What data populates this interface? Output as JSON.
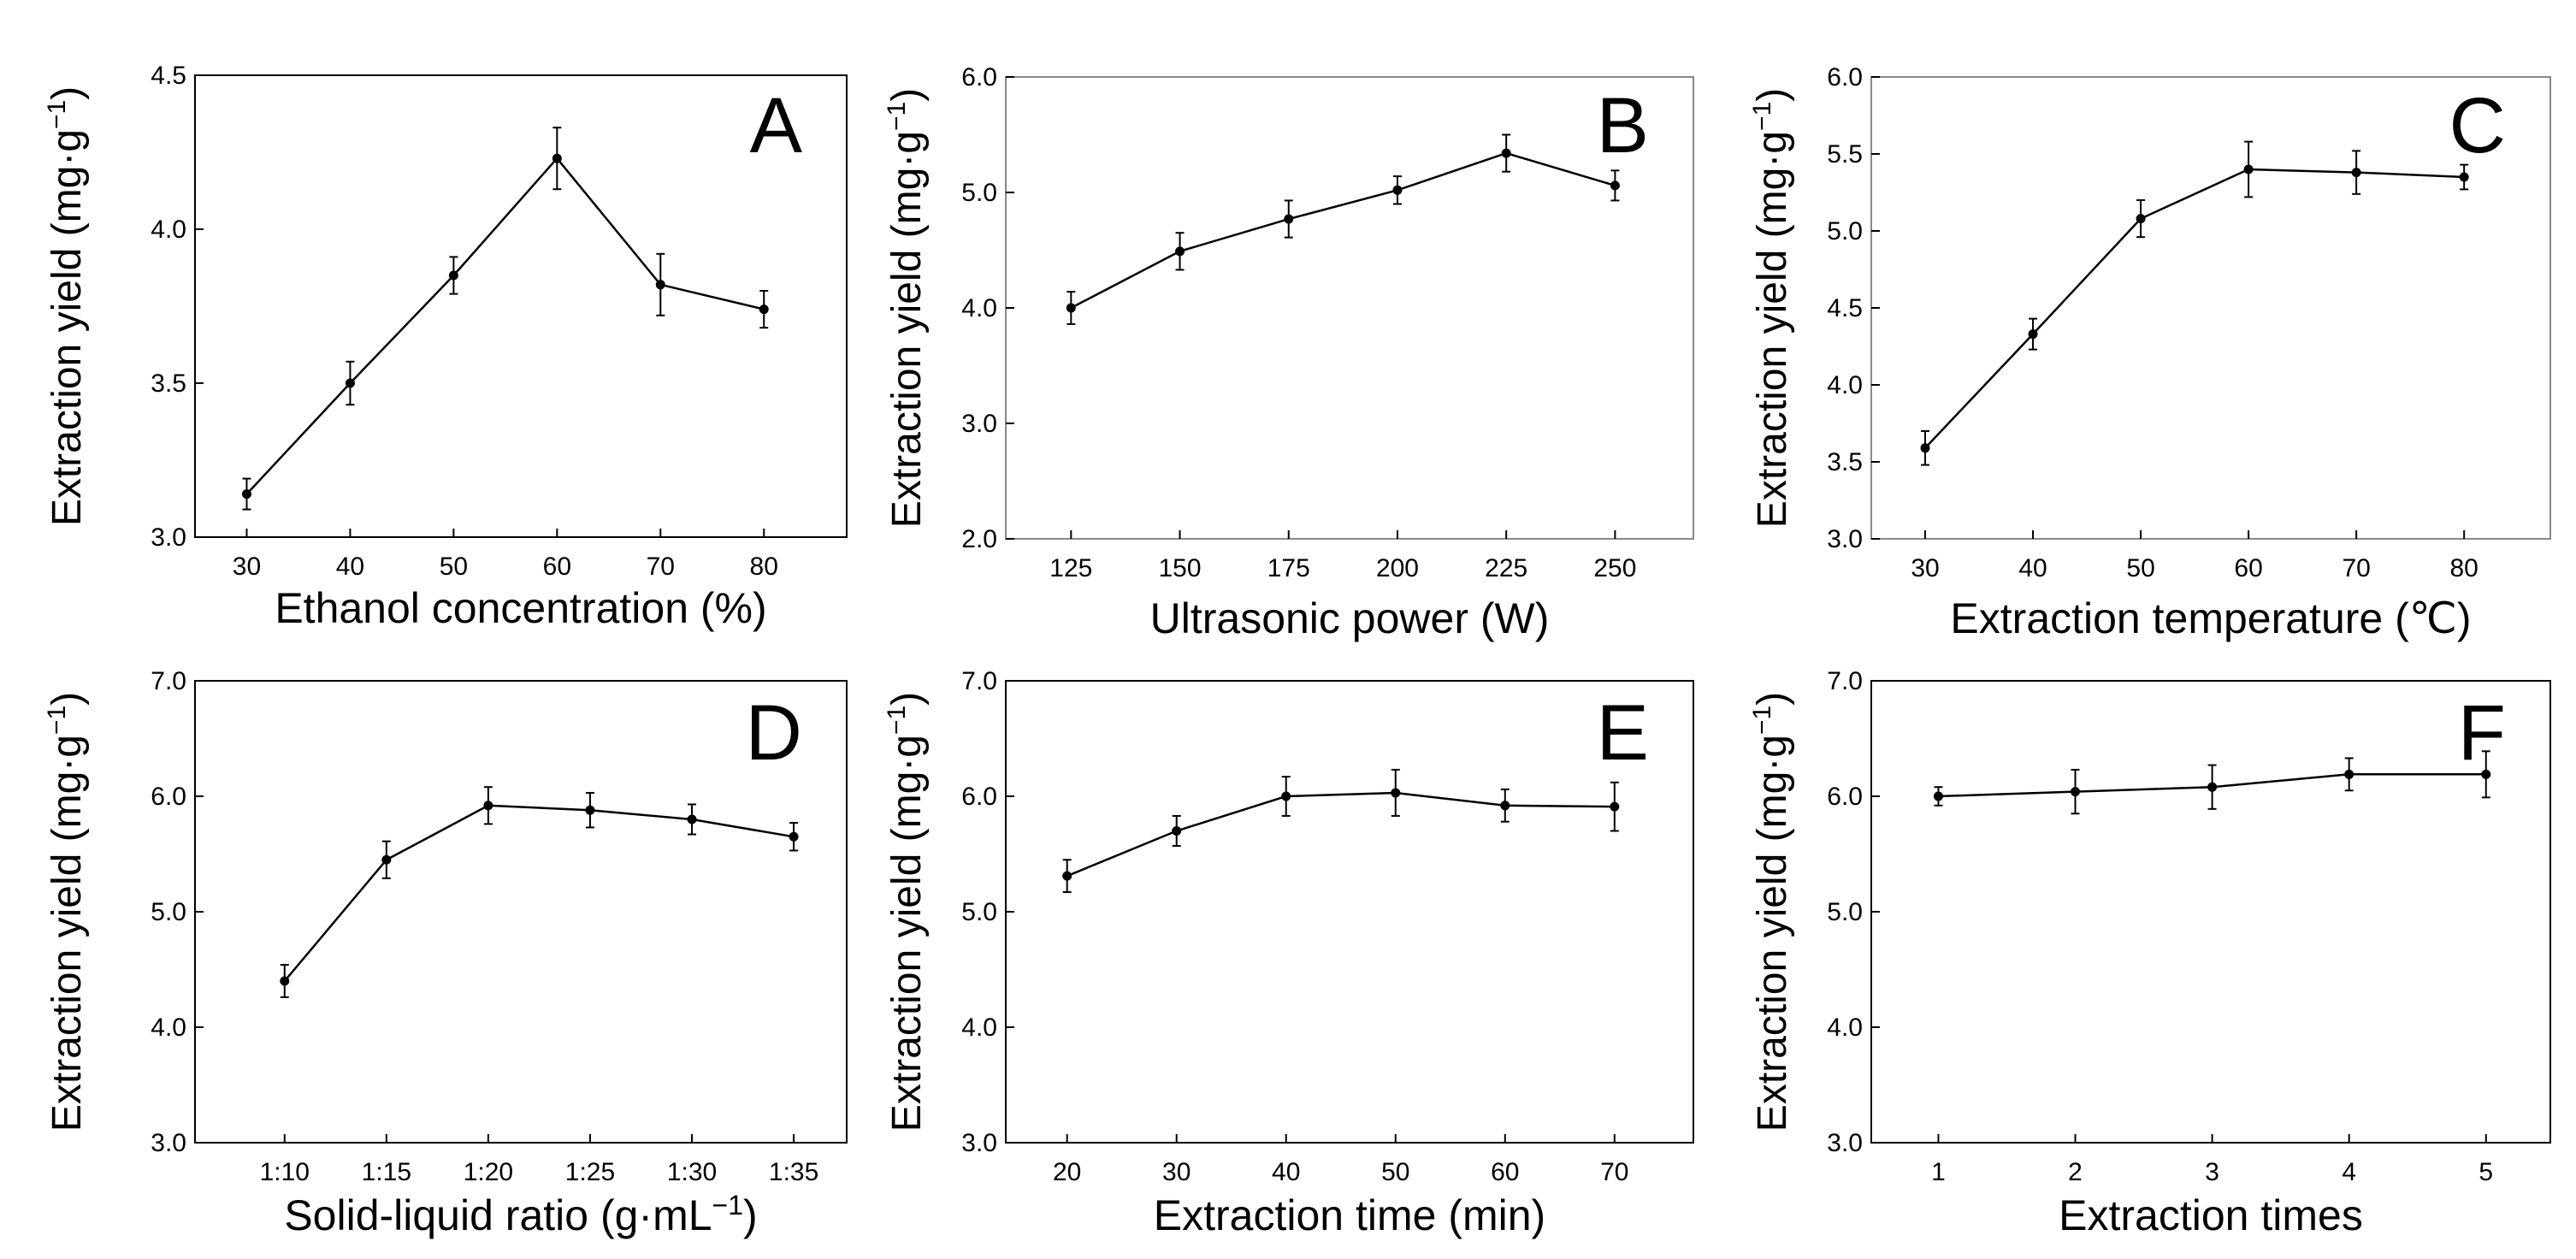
{
  "chart_data": [
    {
      "panel": "A",
      "type": "line",
      "xlabel": "Ethanol concentration (%)",
      "ylabel": "Extraction yield (mg·g",
      "ylabel_sup": "−1",
      "ylabel_close": ")",
      "x": [
        30,
        40,
        50,
        60,
        70,
        80
      ],
      "x_ticks": [
        "30",
        "40",
        "50",
        "60",
        "70",
        "80"
      ],
      "xlim": [
        25,
        88
      ],
      "y": [
        3.14,
        3.5,
        3.85,
        4.23,
        3.82,
        3.74
      ],
      "err": [
        0.05,
        0.07,
        0.06,
        0.1,
        0.1,
        0.06
      ],
      "ylim": [
        3.0,
        4.5
      ],
      "y_ticks": [
        "3.0",
        "3.5",
        "4.0",
        "4.5"
      ],
      "y_tick_values": [
        3.0,
        3.5,
        4.0,
        4.5
      ]
    },
    {
      "panel": "B",
      "type": "line",
      "xlabel": "Ultrasonic power (W)",
      "ylabel": "Extraction yield (mg·g",
      "ylabel_sup": "−1",
      "ylabel_close": ")",
      "x": [
        125,
        150,
        175,
        200,
        225,
        250
      ],
      "x_ticks": [
        "125",
        "150",
        "175",
        "200",
        "225",
        "250"
      ],
      "xlim": [
        110,
        268
      ],
      "y": [
        4.0,
        4.49,
        4.77,
        5.02,
        5.34,
        5.06
      ],
      "err": [
        0.14,
        0.16,
        0.16,
        0.12,
        0.16,
        0.13
      ],
      "ylim": [
        2.0,
        6.0
      ],
      "y_ticks": [
        "2.0",
        "3.0",
        "4.0",
        "5.0",
        "6.0"
      ],
      "y_tick_values": [
        2.0,
        3.0,
        4.0,
        5.0,
        6.0
      ]
    },
    {
      "panel": "C",
      "type": "line",
      "xlabel": "Extraction temperature (℃)",
      "ylabel": "Extraction yield (mg·g",
      "ylabel_sup": "−1",
      "ylabel_close": ")",
      "x": [
        30,
        40,
        50,
        60,
        70,
        80
      ],
      "x_ticks": [
        "30",
        "40",
        "50",
        "60",
        "70",
        "80"
      ],
      "xlim": [
        25,
        88
      ],
      "y": [
        3.59,
        4.33,
        5.08,
        5.4,
        5.38,
        5.35
      ],
      "err": [
        0.11,
        0.1,
        0.12,
        0.18,
        0.14,
        0.08
      ],
      "ylim": [
        3.0,
        6.0
      ],
      "y_ticks": [
        "3.0",
        "3.5",
        "4.0",
        "4.5",
        "5.0",
        "5.5",
        "6.0"
      ],
      "y_tick_values": [
        3.0,
        3.5,
        4.0,
        4.5,
        5.0,
        5.5,
        6.0
      ]
    },
    {
      "panel": "D",
      "type": "line",
      "xlabel": "Solid-liquid ratio (g·mL",
      "xlabel_sup": "−1",
      "xlabel_close": ")",
      "ylabel": "Extraction yield (mg·g",
      "ylabel_sup": "−1",
      "ylabel_close": ")",
      "x": [
        10,
        15,
        20,
        25,
        30,
        35
      ],
      "x_ticks": [
        "1:10",
        "1:15",
        "1:20",
        "1:25",
        "1:30",
        "1:35"
      ],
      "xlim": [
        5.6,
        37.6
      ],
      "y": [
        4.4,
        5.45,
        5.92,
        5.88,
        5.8,
        5.65
      ],
      "err": [
        0.14,
        0.16,
        0.16,
        0.15,
        0.13,
        0.12
      ],
      "ylim": [
        3.0,
        7.0
      ],
      "y_ticks": [
        "3.0",
        "4.0",
        "5.0",
        "6.0",
        "7.0"
      ],
      "y_tick_values": [
        3.0,
        4.0,
        5.0,
        6.0,
        7.0
      ]
    },
    {
      "panel": "E",
      "type": "line",
      "xlabel": "Extraction time (min)",
      "ylabel": "Extraction yield (mg·g",
      "ylabel_sup": "−1",
      "ylabel_close": ")",
      "x": [
        20,
        30,
        40,
        50,
        60,
        70
      ],
      "x_ticks": [
        "20",
        "30",
        "40",
        "50",
        "60",
        "70"
      ],
      "xlim": [
        14.4,
        77.2
      ],
      "y": [
        5.31,
        5.7,
        6.0,
        6.03,
        5.92,
        5.91
      ],
      "err": [
        0.14,
        0.13,
        0.17,
        0.2,
        0.14,
        0.21
      ],
      "ylim": [
        3.0,
        7.0
      ],
      "y_ticks": [
        "3.0",
        "4.0",
        "5.0",
        "6.0",
        "7.0"
      ],
      "y_tick_values": [
        3.0,
        4.0,
        5.0,
        6.0,
        7.0
      ]
    },
    {
      "panel": "F",
      "type": "line",
      "xlabel": "Extraction times",
      "ylabel": "Extraction yield (mg·g",
      "ylabel_sup": "−1",
      "ylabel_close": ")",
      "x": [
        1,
        2,
        3,
        4,
        5
      ],
      "x_ticks": [
        "1",
        "2",
        "3",
        "4",
        "5"
      ],
      "xlim": [
        0.51,
        5.47
      ],
      "y": [
        6.0,
        6.04,
        6.08,
        6.19,
        6.19
      ],
      "err": [
        0.08,
        0.19,
        0.19,
        0.14,
        0.2
      ],
      "ylim": [
        3.0,
        7.0
      ],
      "y_ticks": [
        "3.0",
        "4.0",
        "5.0",
        "6.0",
        "7.0"
      ],
      "y_tick_values": [
        3.0,
        4.0,
        5.0,
        6.0,
        7.0
      ]
    }
  ]
}
